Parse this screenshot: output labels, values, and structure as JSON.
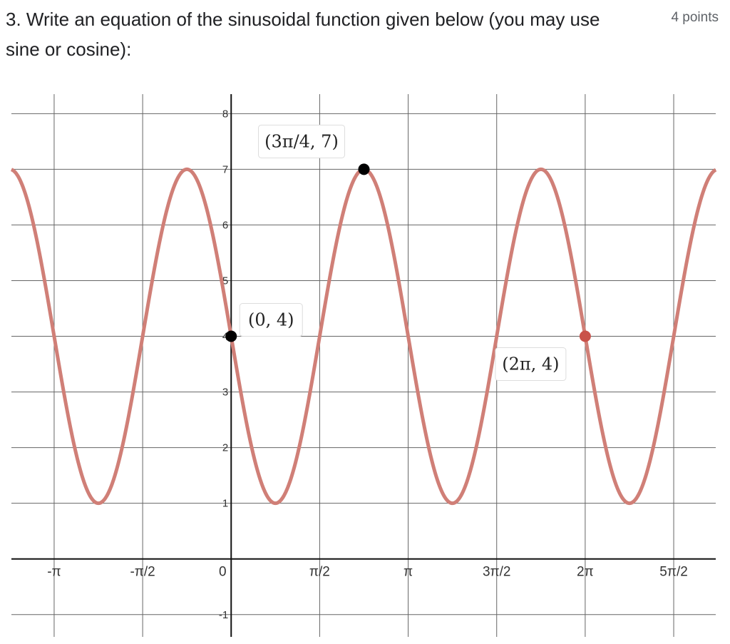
{
  "question": {
    "text": "3. Write an equation of the sinusoidal function given below (you may use sine or cosine):",
    "points": "4 points"
  },
  "colors": {
    "curve": "#d07f77",
    "accent_point": "#c9524a",
    "point": "#000000",
    "grid": "#666666",
    "axis": "#111111"
  },
  "chart_data": {
    "type": "line",
    "title": "",
    "xlabel": "",
    "ylabel": "",
    "x_scale": "pi",
    "xlim": [
      -3.9,
      8.6
    ],
    "ylim": [
      -1.4,
      8.35
    ],
    "grid": true,
    "x_ticks": [
      {
        "value": -3.14159,
        "label": "-π"
      },
      {
        "value": -1.5708,
        "label": "-π/2"
      },
      {
        "value": 0,
        "label": "0"
      },
      {
        "value": 1.5708,
        "label": "π/2"
      },
      {
        "value": 3.14159,
        "label": "π"
      },
      {
        "value": 4.71239,
        "label": "3π/2"
      },
      {
        "value": 6.28319,
        "label": "2π"
      },
      {
        "value": 7.85398,
        "label": "5π/2"
      }
    ],
    "y_ticks": [
      {
        "value": -1,
        "label": "-1"
      },
      {
        "value": 1,
        "label": "1"
      },
      {
        "value": 2,
        "label": "2"
      },
      {
        "value": 3,
        "label": "3"
      },
      {
        "value": 4,
        "label": "4"
      },
      {
        "value": 5,
        "label": "5"
      },
      {
        "value": 6,
        "label": "6"
      },
      {
        "value": 7,
        "label": "7"
      },
      {
        "value": 8,
        "label": "8"
      }
    ],
    "series": [
      {
        "amplitude": 3,
        "midline": 4,
        "period": 3.14159,
        "phase_sign": -1
      }
    ],
    "points": [
      {
        "x": 0,
        "y": 4,
        "label": "(0, 4)",
        "style": "black"
      },
      {
        "x": 2.35619,
        "y": 7,
        "label": "(3π/4, 7)",
        "style": "black"
      },
      {
        "x": 6.28319,
        "y": 4,
        "label": "(2π, 4)",
        "style": "accent"
      }
    ]
  }
}
